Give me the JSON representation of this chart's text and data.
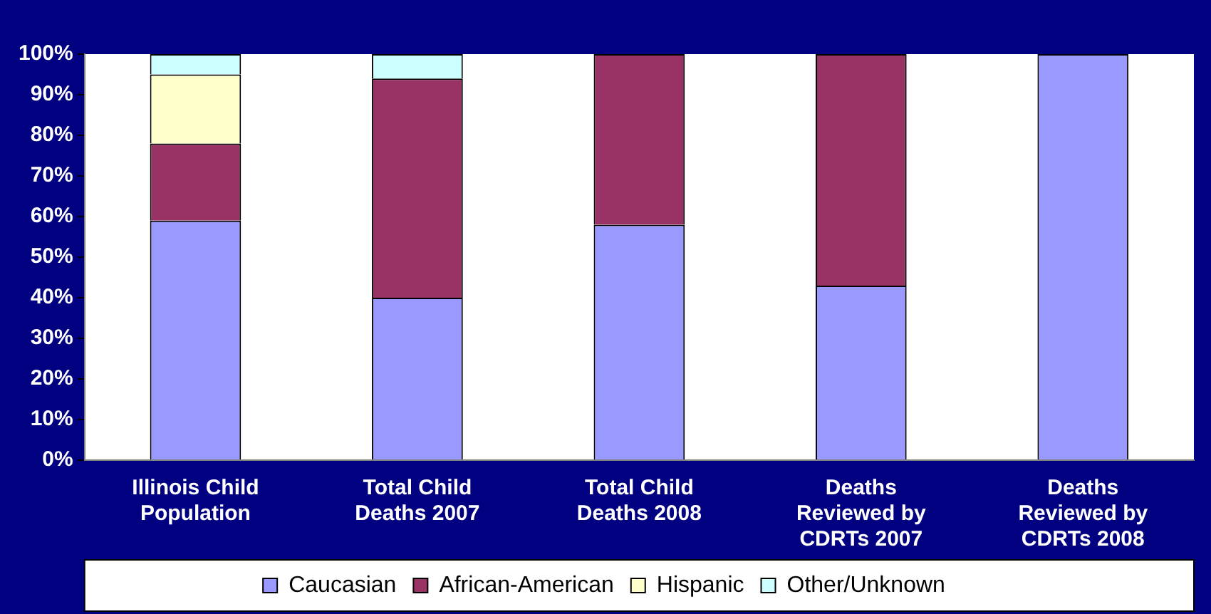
{
  "chart_data": {
    "type": "bar",
    "stacked": true,
    "categories": [
      "Illinois Child Population",
      "Total Child Deaths 2007",
      "Total Child Deaths 2008",
      "Deaths Reviewed by CDRTs 2007",
      "Deaths Reviewed by CDRTs 2008"
    ],
    "series": [
      {
        "name": "Caucasian",
        "color": "#9999ff",
        "values": [
          59,
          40,
          58,
          43,
          100
        ]
      },
      {
        "name": "African-American",
        "color": "#993366",
        "values": [
          19,
          54,
          42,
          57,
          0
        ]
      },
      {
        "name": "Hispanic",
        "color": "#ffffcc",
        "values": [
          17,
          0,
          0,
          0,
          0
        ]
      },
      {
        "name": "Other/Unknown",
        "color": "#ccffff",
        "values": [
          5,
          6,
          0,
          0,
          0
        ]
      }
    ],
    "ylim": [
      0,
      100
    ],
    "yticks": [
      {
        "value": 0,
        "label": "0%"
      },
      {
        "value": 10,
        "label": "10%"
      },
      {
        "value": 20,
        "label": "20%"
      },
      {
        "value": 30,
        "label": "30%"
      },
      {
        "value": 40,
        "label": "40%"
      },
      {
        "value": 50,
        "label": "50%"
      },
      {
        "value": 60,
        "label": "60%"
      },
      {
        "value": 70,
        "label": "70%"
      },
      {
        "value": 80,
        "label": "80%"
      },
      {
        "value": 90,
        "label": "90%"
      },
      {
        "value": 100,
        "label": "100%"
      }
    ],
    "grid": false,
    "legend": "bottom"
  }
}
